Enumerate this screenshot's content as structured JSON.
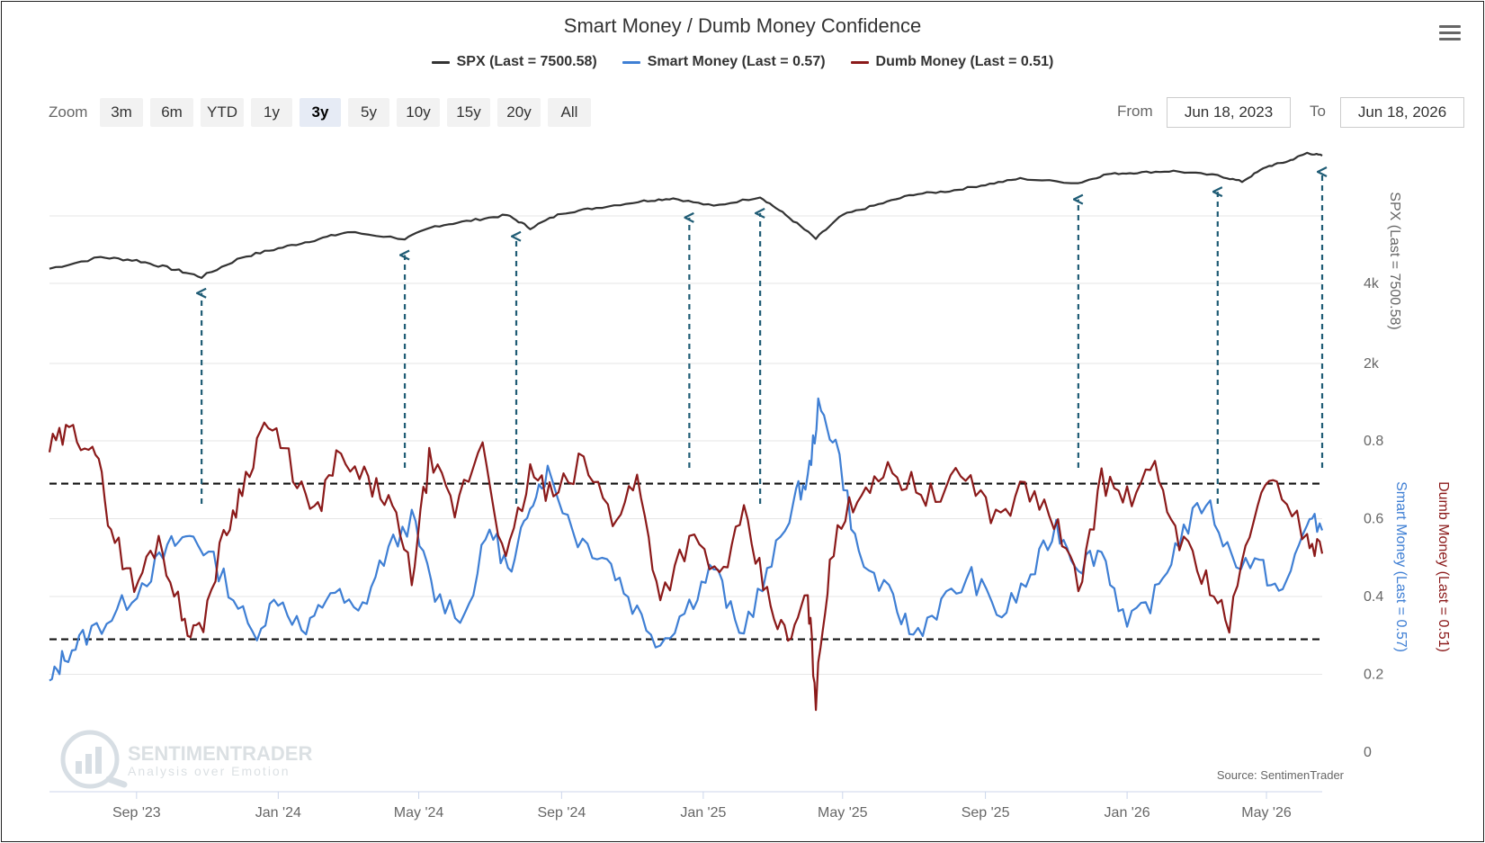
{
  "chart_data": {
    "type": "line",
    "title": "Smart Money / Dumb Money Confidence",
    "series": [
      {
        "name": "SPX (Last = 7500.58)",
        "color": "#333333",
        "x": [
          "2023-06-18",
          "2023-08-01",
          "2023-09-01",
          "2023-10-01",
          "2023-10-27",
          "2023-12-01",
          "2024-01-01",
          "2024-02-01",
          "2024-03-01",
          "2024-04-19",
          "2024-05-15",
          "2024-06-15",
          "2024-07-16",
          "2024-08-05",
          "2024-09-01",
          "2024-10-01",
          "2024-11-11",
          "2024-12-06",
          "2025-01-10",
          "2025-02-19",
          "2025-03-13",
          "2025-04-08",
          "2025-05-01",
          "2025-06-01",
          "2025-07-01",
          "2025-08-01",
          "2025-09-01",
          "2025-10-01",
          "2025-11-20",
          "2025-12-15",
          "2026-01-10",
          "2026-02-10",
          "2026-03-20",
          "2026-04-10",
          "2026-05-01",
          "2026-05-20",
          "2026-06-05",
          "2026-06-18"
        ],
        "values": [
          4300,
          4550,
          4480,
          4300,
          4130,
          4550,
          4750,
          4950,
          5150,
          4980,
          5300,
          5450,
          5600,
          5250,
          5650,
          5800,
          6000,
          6080,
          5850,
          6120,
          5600,
          4980,
          5600,
          5900,
          6200,
          6300,
          6500,
          6700,
          6550,
          6850,
          6900,
          6950,
          6800,
          6600,
          7100,
          7300,
          7600,
          7500.58
        ]
      },
      {
        "name": "Smart Money (Last = 0.57)",
        "color": "#3f7fd4",
        "x": [
          "2023-06-18",
          "2023-07-01",
          "2023-07-20",
          "2023-08-15",
          "2023-09-10",
          "2023-10-01",
          "2023-10-20",
          "2023-11-15",
          "2023-12-10",
          "2024-01-01",
          "2024-01-25",
          "2024-02-15",
          "2024-03-10",
          "2024-04-01",
          "2024-04-25",
          "2024-05-15",
          "2024-06-10",
          "2024-07-01",
          "2024-07-20",
          "2024-08-05",
          "2024-08-20",
          "2024-09-15",
          "2024-10-10",
          "2024-11-01",
          "2024-11-25",
          "2024-12-20",
          "2025-01-10",
          "2025-02-01",
          "2025-02-25",
          "2025-03-20",
          "2025-04-01",
          "2025-04-10",
          "2025-04-25",
          "2025-05-15",
          "2025-06-10",
          "2025-07-01",
          "2025-07-25",
          "2025-08-20",
          "2025-09-15",
          "2025-10-10",
          "2025-11-01",
          "2025-11-20",
          "2025-12-10",
          "2026-01-01",
          "2026-01-25",
          "2026-02-15",
          "2026-03-10",
          "2026-04-01",
          "2026-04-25",
          "2026-05-15",
          "2026-06-05",
          "2026-06-18"
        ],
        "values": [
          0.17,
          0.25,
          0.3,
          0.36,
          0.45,
          0.53,
          0.56,
          0.45,
          0.3,
          0.4,
          0.3,
          0.42,
          0.35,
          0.5,
          0.6,
          0.4,
          0.35,
          0.58,
          0.45,
          0.65,
          0.72,
          0.55,
          0.5,
          0.38,
          0.28,
          0.38,
          0.48,
          0.3,
          0.45,
          0.65,
          0.7,
          0.88,
          0.8,
          0.5,
          0.4,
          0.3,
          0.38,
          0.45,
          0.35,
          0.45,
          0.58,
          0.48,
          0.52,
          0.32,
          0.4,
          0.55,
          0.65,
          0.5,
          0.48,
          0.4,
          0.6,
          0.57
        ]
      },
      {
        "name": "Dumb Money (Last = 0.51)",
        "color": "#8b1a1a",
        "x": [
          "2023-06-18",
          "2023-07-05",
          "2023-07-25",
          "2023-08-10",
          "2023-08-30",
          "2023-09-20",
          "2023-10-10",
          "2023-10-25",
          "2023-11-15",
          "2023-12-01",
          "2023-12-20",
          "2024-01-10",
          "2024-02-01",
          "2024-02-20",
          "2024-03-15",
          "2024-04-05",
          "2024-04-25",
          "2024-05-10",
          "2024-06-01",
          "2024-06-25",
          "2024-07-15",
          "2024-08-05",
          "2024-08-25",
          "2024-09-20",
          "2024-10-15",
          "2024-11-05",
          "2024-11-25",
          "2024-12-20",
          "2025-01-15",
          "2025-02-05",
          "2025-02-25",
          "2025-03-15",
          "2025-04-01",
          "2025-04-08",
          "2025-04-20",
          "2025-05-10",
          "2025-06-01",
          "2025-06-25",
          "2025-07-20",
          "2025-08-15",
          "2025-09-10",
          "2025-10-05",
          "2025-10-30",
          "2025-11-20",
          "2025-12-10",
          "2026-01-01",
          "2026-01-25",
          "2026-02-15",
          "2026-03-10",
          "2026-03-30",
          "2026-04-20",
          "2026-05-10",
          "2026-06-05",
          "2026-06-18"
        ],
        "values": [
          0.78,
          0.82,
          0.8,
          0.58,
          0.42,
          0.55,
          0.35,
          0.3,
          0.55,
          0.68,
          0.85,
          0.75,
          0.6,
          0.75,
          0.7,
          0.65,
          0.45,
          0.75,
          0.62,
          0.8,
          0.48,
          0.72,
          0.65,
          0.75,
          0.6,
          0.7,
          0.4,
          0.55,
          0.45,
          0.6,
          0.4,
          0.28,
          0.4,
          0.14,
          0.5,
          0.65,
          0.72,
          0.7,
          0.65,
          0.72,
          0.6,
          0.68,
          0.6,
          0.42,
          0.7,
          0.65,
          0.72,
          0.55,
          0.45,
          0.32,
          0.62,
          0.7,
          0.55,
          0.51
        ]
      }
    ],
    "yaxes": [
      {
        "id": "spx",
        "title": "SPX (Last = 7500.58)",
        "scale": "log",
        "ticks": [
          {
            "value": 2000,
            "label": "2k"
          },
          {
            "value": 4000,
            "label": "4k"
          }
        ]
      },
      {
        "id": "confidence",
        "titles": [
          "Smart Money (Last = 0.57)",
          "Dumb Money (Last = 0.51)"
        ],
        "ylim": [
          0,
          0.85
        ],
        "ticks": [
          0,
          0.2,
          0.4,
          0.6,
          0.8
        ]
      }
    ],
    "x_ticks": [
      {
        "date": "2023-09-01",
        "label": "Sep '23"
      },
      {
        "date": "2024-01-01",
        "label": "Jan '24"
      },
      {
        "date": "2024-05-01",
        "label": "May '24"
      },
      {
        "date": "2024-09-01",
        "label": "Sep '24"
      },
      {
        "date": "2025-01-01",
        "label": "Jan '25"
      },
      {
        "date": "2025-05-01",
        "label": "May '25"
      },
      {
        "date": "2025-09-01",
        "label": "Sep '25"
      },
      {
        "date": "2026-01-01",
        "label": "Jan '26"
      },
      {
        "date": "2026-05-01",
        "label": "May '26"
      }
    ],
    "xlim": [
      "2023-06-18",
      "2026-06-18"
    ],
    "reference_lines": [
      0.69,
      0.29
    ],
    "annotation_arrows": [
      "2023-10-27",
      "2024-04-19",
      "2024-07-24",
      "2024-12-20",
      "2025-02-19",
      "2025-11-20",
      "2026-03-20",
      "2026-06-18"
    ],
    "grid": true,
    "legend_position": "top-center"
  },
  "zoom": {
    "label": "Zoom",
    "buttons": [
      "3m",
      "6m",
      "YTD",
      "1y",
      "3y",
      "5y",
      "10y",
      "15y",
      "20y",
      "All"
    ],
    "active": "3y"
  },
  "range": {
    "from_label": "From",
    "from_value": "Jun 18, 2023",
    "to_label": "To",
    "to_value": "Jun 18, 2026"
  },
  "watermark": {
    "brand": "SENTIMENTRADER",
    "tagline": "Analysis over Emotion"
  },
  "source": "Source: SentimenTrader",
  "menu_icon": "hamburger-menu-icon"
}
